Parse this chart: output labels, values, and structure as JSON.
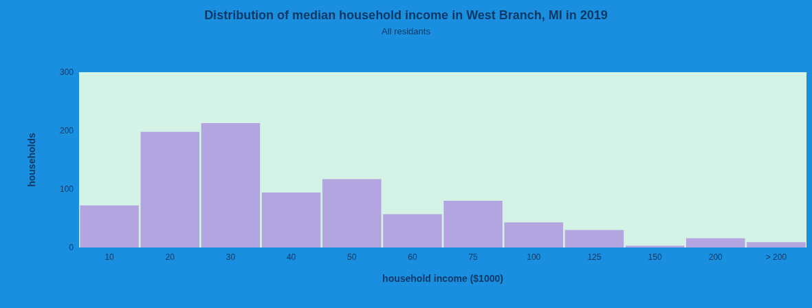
{
  "chart_data": {
    "type": "bar",
    "title": "Distribution of median household income in West Branch, MI in 2019",
    "subtitle": "All residants",
    "xlabel": "household income ($1000)",
    "ylabel": "households",
    "categories": [
      "10",
      "20",
      "30",
      "40",
      "50",
      "60",
      "75",
      "100",
      "125",
      "150",
      "200",
      "> 200"
    ],
    "values": [
      72,
      198,
      213,
      94,
      117,
      57,
      80,
      43,
      30,
      3,
      16,
      9
    ],
    "color": "#b3a6e0",
    "ylim": [
      0,
      300
    ],
    "yticks": [
      0,
      100,
      200,
      300
    ],
    "grid": false
  }
}
